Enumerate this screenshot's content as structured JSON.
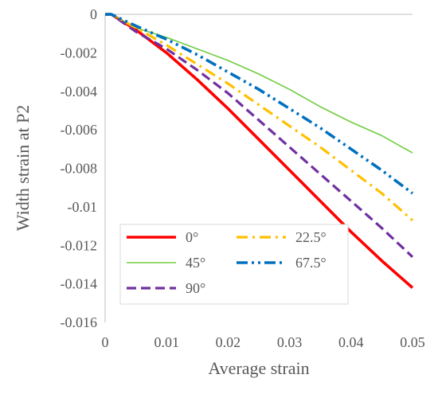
{
  "chart_data": {
    "type": "line",
    "title": "",
    "xlabel": "Average strain",
    "ylabel": "Width strain at P2",
    "xlim": [
      0,
      0.05
    ],
    "ylim": [
      -0.016,
      0
    ],
    "x_ticks": [
      {
        "value": 0,
        "label": "0"
      },
      {
        "value": 0.01,
        "label": "0.01"
      },
      {
        "value": 0.02,
        "label": "0.02"
      },
      {
        "value": 0.03,
        "label": "0.03"
      },
      {
        "value": 0.04,
        "label": "0.04"
      },
      {
        "value": 0.05,
        "label": "0.05"
      }
    ],
    "y_ticks": [
      {
        "value": 0,
        "label": "0"
      },
      {
        "value": -0.002,
        "label": "-0.002"
      },
      {
        "value": -0.004,
        "label": "-0.004"
      },
      {
        "value": -0.006,
        "label": "-0.006"
      },
      {
        "value": -0.008,
        "label": "-0.008"
      },
      {
        "value": -0.01,
        "label": "-0.01"
      },
      {
        "value": -0.012,
        "label": "-0.012"
      },
      {
        "value": -0.014,
        "label": "-0.014"
      },
      {
        "value": -0.016,
        "label": "-0.016"
      }
    ],
    "grid": false,
    "legend_position": "bottom-left inside",
    "series": [
      {
        "name": "0°",
        "color": "#ff0000",
        "dash": "solid",
        "points": [
          [
            0,
            0
          ],
          [
            0.001,
            0
          ],
          [
            0.005,
            -0.0008
          ],
          [
            0.01,
            -0.002
          ],
          [
            0.015,
            -0.0034
          ],
          [
            0.02,
            -0.0049
          ],
          [
            0.025,
            -0.0065
          ],
          [
            0.03,
            -0.0081
          ],
          [
            0.035,
            -0.0097
          ],
          [
            0.04,
            -0.0113
          ],
          [
            0.045,
            -0.0128
          ],
          [
            0.05,
            -0.0142
          ]
        ]
      },
      {
        "name": "45°",
        "color": "#70cc40",
        "dash": "solid",
        "points": [
          [
            0,
            0
          ],
          [
            0.001,
            0
          ],
          [
            0.005,
            -0.0007
          ],
          [
            0.01,
            -0.0012
          ],
          [
            0.015,
            -0.0018
          ],
          [
            0.02,
            -0.0024
          ],
          [
            0.025,
            -0.0031
          ],
          [
            0.03,
            -0.0039
          ],
          [
            0.035,
            -0.0048
          ],
          [
            0.04,
            -0.0056
          ],
          [
            0.045,
            -0.0063
          ],
          [
            0.05,
            -0.0072
          ]
        ]
      },
      {
        "name": "90°",
        "color": "#7030a0",
        "dash": "dash",
        "points": [
          [
            0,
            0
          ],
          [
            0.001,
            0
          ],
          [
            0.005,
            -0.0009
          ],
          [
            0.01,
            -0.0018
          ],
          [
            0.015,
            -0.0029
          ],
          [
            0.02,
            -0.0041
          ],
          [
            0.025,
            -0.0055
          ],
          [
            0.03,
            -0.0069
          ],
          [
            0.035,
            -0.0083
          ],
          [
            0.04,
            -0.0097
          ],
          [
            0.045,
            -0.0111
          ],
          [
            0.05,
            -0.0126
          ]
        ]
      },
      {
        "name": "22.5°",
        "color": "#ffc000",
        "dash": "dashdot",
        "points": [
          [
            0,
            0
          ],
          [
            0.001,
            0
          ],
          [
            0.005,
            -0.0007
          ],
          [
            0.01,
            -0.0016
          ],
          [
            0.015,
            -0.0026
          ],
          [
            0.02,
            -0.0036
          ],
          [
            0.025,
            -0.0047
          ],
          [
            0.03,
            -0.0058
          ],
          [
            0.035,
            -0.0069
          ],
          [
            0.04,
            -0.0081
          ],
          [
            0.045,
            -0.0093
          ],
          [
            0.05,
            -0.0107
          ]
        ]
      },
      {
        "name": "67.5°",
        "color": "#0070c0",
        "dash": "dashdotdot",
        "points": [
          [
            0,
            0
          ],
          [
            0.001,
            0
          ],
          [
            0.005,
            -0.0006
          ],
          [
            0.01,
            -0.0013
          ],
          [
            0.015,
            -0.0021
          ],
          [
            0.02,
            -0.003
          ],
          [
            0.025,
            -0.0039
          ],
          [
            0.03,
            -0.0049
          ],
          [
            0.035,
            -0.0059
          ],
          [
            0.04,
            -0.007
          ],
          [
            0.045,
            -0.0081
          ],
          [
            0.05,
            -0.0093
          ]
        ]
      }
    ]
  }
}
